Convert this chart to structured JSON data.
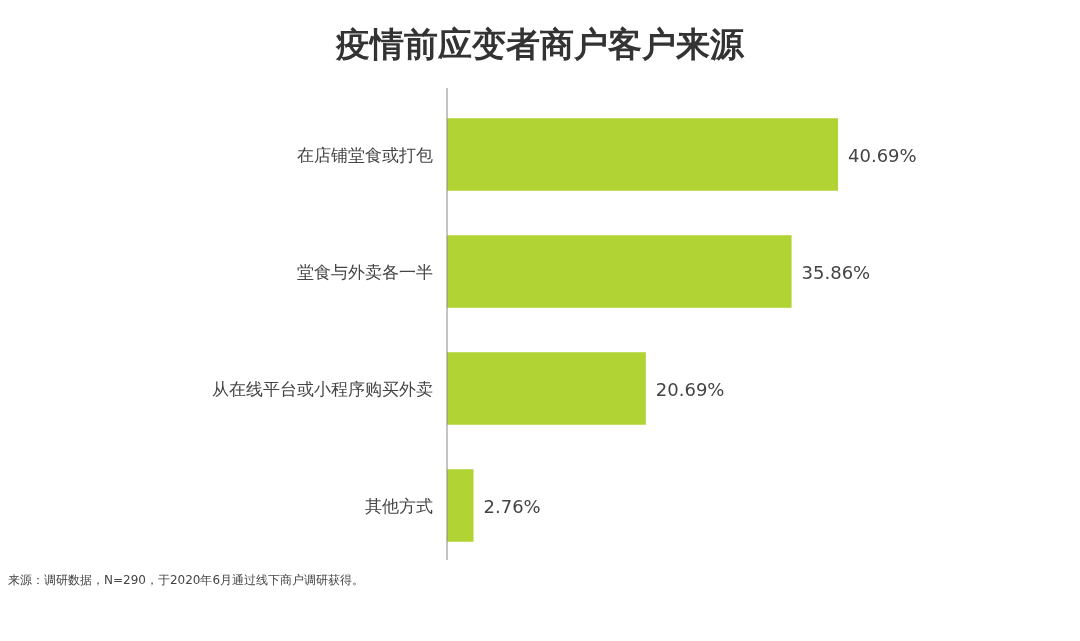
{
  "chart_data": {
    "type": "bar",
    "orientation": "horizontal",
    "title": "疫情前应变者商户客户来源",
    "categories": [
      "在店铺堂食或打包",
      "堂食与外卖各一半",
      "从在线平台或小程序购买外卖",
      "其他方式"
    ],
    "values": [
      40.69,
      35.86,
      20.69,
      2.76
    ],
    "value_labels": [
      "40.69%",
      "35.86%",
      "20.69%",
      "2.76%"
    ],
    "color": "#b1d334",
    "annotations": [
      "来源：调研数据，N=290，于2020年6月通过线下商户调研获得。"
    ]
  }
}
